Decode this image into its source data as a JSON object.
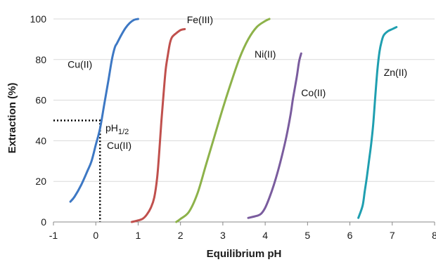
{
  "chart_data": {
    "type": "line",
    "title": "",
    "xlabel": "Equilibrium pH",
    "ylabel": "Extraction (%)",
    "xlim": [
      -1,
      8
    ],
    "ylim": [
      0,
      100
    ],
    "xticks": [
      "-1",
      "0",
      "1",
      "2",
      "3",
      "4",
      "5",
      "6",
      "7",
      "8"
    ],
    "yticks": [
      "0",
      "20",
      "40",
      "60",
      "80",
      "100"
    ],
    "grid": "horizontal",
    "legend": "none",
    "series": [
      {
        "name": "Cu(II)",
        "color": "#3d78c4",
        "x": [
          -0.6,
          -0.5,
          -0.35,
          -0.2,
          -0.1,
          0.0,
          0.1,
          0.2,
          0.3,
          0.38,
          0.45,
          0.5,
          0.6,
          0.7,
          0.8,
          0.9,
          1.0
        ],
        "y": [
          10,
          12.5,
          18,
          25,
          30,
          38,
          46,
          58,
          70,
          80,
          86,
          88,
          92,
          95.5,
          98,
          99.5,
          100
        ]
      },
      {
        "name": "Fe(III)",
        "color": "#c0504d",
        "x": [
          0.85,
          0.95,
          1.1,
          1.2,
          1.3,
          1.38,
          1.45,
          1.5,
          1.55,
          1.6,
          1.65,
          1.7,
          1.75,
          1.8,
          1.9,
          2.0,
          2.1
        ],
        "y": [
          0,
          0.5,
          1.5,
          3.5,
          7,
          12,
          22,
          35,
          50,
          63,
          75,
          82,
          88,
          91,
          93,
          94.5,
          95
        ]
      },
      {
        "name": "Ni(II)",
        "color": "#8db24a",
        "x": [
          1.9,
          2.0,
          2.2,
          2.4,
          2.6,
          2.8,
          3.0,
          3.2,
          3.4,
          3.6,
          3.8,
          4.0,
          4.1
        ],
        "y": [
          0,
          1.5,
          5,
          14,
          28,
          42,
          56,
          69,
          81,
          90,
          96,
          99,
          100
        ]
      },
      {
        "name": "Co(II)",
        "color": "#7a5c9e",
        "x": [
          3.6,
          3.8,
          3.9,
          4.0,
          4.1,
          4.2,
          4.3,
          4.4,
          4.5,
          4.6,
          4.65,
          4.7,
          4.75,
          4.8,
          4.85
        ],
        "y": [
          2,
          3,
          4,
          7,
          12,
          18,
          25,
          33,
          42,
          53,
          60,
          66,
          72,
          79,
          83
        ]
      },
      {
        "name": "Zn(II)",
        "color": "#1f9fb0",
        "x": [
          6.2,
          6.3,
          6.35,
          6.4,
          6.45,
          6.5,
          6.55,
          6.6,
          6.65,
          6.7,
          6.75,
          6.8,
          6.9,
          7.0,
          7.1
        ],
        "y": [
          2,
          8,
          15,
          22,
          30,
          38,
          48,
          62,
          75,
          84,
          89,
          92,
          94,
          95,
          96
        ]
      }
    ],
    "annotations": {
      "ph_half_label_main": "pH",
      "ph_half_label_sub": "1/2",
      "ph_half_label_metal": "Cu(II)",
      "ph_half_point": {
        "x": 0.1,
        "y": 50
      }
    }
  }
}
